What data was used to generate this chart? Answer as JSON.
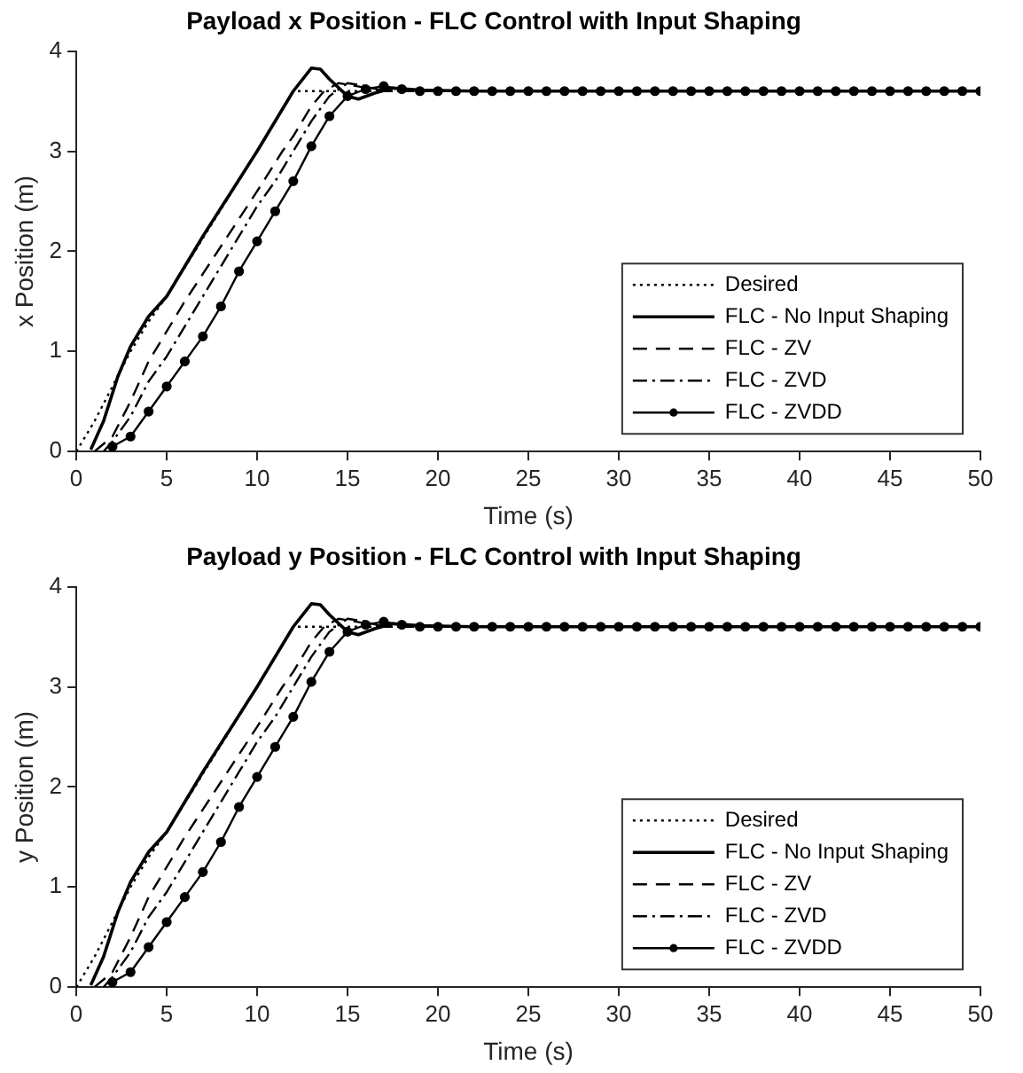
{
  "chart_data": [
    {
      "type": "line",
      "title": "Payload x Position - FLC Control with Input Shaping",
      "xlabel": "Time (s)",
      "ylabel": "x Position (m)",
      "xlim": [
        0,
        50
      ],
      "xticks": [
        0,
        5,
        10,
        15,
        20,
        25,
        30,
        35,
        40,
        45,
        50
      ],
      "ylim": [
        0,
        4
      ],
      "yticks": [
        0,
        1,
        2,
        3,
        4
      ],
      "grid": false,
      "legend": "bottom right",
      "series": [
        {
          "name": "Desired",
          "color": "#000000",
          "line_style": "dotted",
          "marker": "none",
          "x": [
            0,
            1,
            2,
            3,
            4,
            5,
            10,
            12,
            50
          ],
          "values": [
            0,
            0.3,
            0.65,
            1.0,
            1.3,
            1.55,
            3.0,
            3.6,
            3.6
          ]
        },
        {
          "name": "FLC - No Input Shaping",
          "color": "#000000",
          "line_style": "solid",
          "marker": "none",
          "x": [
            0.8,
            1.5,
            2.3,
            3,
            4,
            5,
            7,
            10,
            12,
            13,
            13.5,
            14,
            15,
            15.6,
            16.5,
            17.5,
            19,
            22,
            50
          ],
          "values": [
            0.02,
            0.3,
            0.75,
            1.05,
            1.35,
            1.55,
            2.15,
            3.0,
            3.6,
            3.83,
            3.82,
            3.72,
            3.55,
            3.52,
            3.58,
            3.63,
            3.61,
            3.6,
            3.6
          ]
        },
        {
          "name": "FLC - ZV",
          "color": "#000000",
          "line_style": "dashed",
          "marker": "none",
          "x": [
            1,
            2,
            3,
            4,
            5,
            6,
            8,
            10,
            11.4,
            12,
            13,
            13.7,
            14.5,
            15.5,
            17,
            50
          ],
          "values": [
            0,
            0.15,
            0.5,
            0.9,
            1.2,
            1.5,
            2.05,
            2.6,
            3.0,
            3.15,
            3.45,
            3.6,
            3.68,
            3.65,
            3.6,
            3.6
          ]
        },
        {
          "name": "FLC - ZVD",
          "color": "#000000",
          "line_style": "dashdot",
          "marker": "none",
          "x": [
            1.5,
            2,
            3,
            4,
            5,
            6,
            7,
            8,
            9,
            10,
            11,
            12,
            13,
            14,
            15,
            16,
            17,
            50
          ],
          "values": [
            0,
            0.1,
            0.35,
            0.7,
            0.95,
            1.25,
            1.55,
            1.85,
            2.15,
            2.45,
            2.7,
            3.0,
            3.3,
            3.55,
            3.68,
            3.65,
            3.6,
            3.6
          ]
        },
        {
          "name": "FLC - ZVDD",
          "color": "#000000",
          "line_style": "solid",
          "marker": "circle",
          "x": [
            2,
            3,
            4,
            5,
            6,
            7,
            8,
            9,
            10,
            11,
            12,
            13,
            14,
            15,
            16,
            17,
            18,
            19,
            20,
            21,
            22,
            23,
            24,
            25,
            26,
            27,
            28,
            29,
            30,
            31,
            32,
            33,
            34,
            35,
            36,
            37,
            38,
            39,
            40,
            41,
            42,
            43,
            44,
            45,
            46,
            47,
            48,
            49,
            50
          ],
          "values": [
            0.05,
            0.15,
            0.4,
            0.65,
            0.9,
            1.15,
            1.45,
            1.8,
            2.1,
            2.4,
            2.7,
            3.05,
            3.35,
            3.55,
            3.62,
            3.65,
            3.62,
            3.6,
            3.6,
            3.6,
            3.6,
            3.6,
            3.6,
            3.6,
            3.6,
            3.6,
            3.6,
            3.6,
            3.6,
            3.6,
            3.6,
            3.6,
            3.6,
            3.6,
            3.6,
            3.6,
            3.6,
            3.6,
            3.6,
            3.6,
            3.6,
            3.6,
            3.6,
            3.6,
            3.6,
            3.6,
            3.6,
            3.6,
            3.6
          ]
        }
      ]
    },
    {
      "type": "line",
      "title": "Payload y Position - FLC Control with Input Shaping",
      "xlabel": "Time (s)",
      "ylabel": "y Position (m)",
      "xlim": [
        0,
        50
      ],
      "xticks": [
        0,
        5,
        10,
        15,
        20,
        25,
        30,
        35,
        40,
        45,
        50
      ],
      "ylim": [
        0,
        4
      ],
      "yticks": [
        0,
        1,
        2,
        3,
        4
      ],
      "grid": false,
      "legend": "bottom right",
      "series": [
        {
          "name": "Desired",
          "color": "#000000",
          "line_style": "dotted",
          "marker": "none",
          "x": [
            0,
            1,
            2,
            3,
            4,
            5,
            10,
            12,
            50
          ],
          "values": [
            0,
            0.3,
            0.65,
            1.0,
            1.3,
            1.55,
            3.0,
            3.6,
            3.6
          ]
        },
        {
          "name": "FLC - No Input Shaping",
          "color": "#000000",
          "line_style": "solid",
          "marker": "none",
          "x": [
            0.8,
            1.5,
            2.3,
            3,
            4,
            5,
            7,
            10,
            12,
            13,
            13.5,
            14,
            15,
            15.6,
            16.5,
            17.5,
            19,
            22,
            50
          ],
          "values": [
            0.02,
            0.3,
            0.75,
            1.05,
            1.35,
            1.55,
            2.15,
            3.0,
            3.6,
            3.83,
            3.82,
            3.72,
            3.55,
            3.52,
            3.58,
            3.63,
            3.61,
            3.6,
            3.6
          ]
        },
        {
          "name": "FLC - ZV",
          "color": "#000000",
          "line_style": "dashed",
          "marker": "none",
          "x": [
            1,
            2,
            3,
            4,
            5,
            6,
            8,
            10,
            11.4,
            12,
            13,
            13.7,
            14.5,
            15.5,
            17,
            50
          ],
          "values": [
            0,
            0.15,
            0.5,
            0.9,
            1.2,
            1.5,
            2.05,
            2.6,
            3.0,
            3.15,
            3.45,
            3.6,
            3.68,
            3.65,
            3.6,
            3.6
          ]
        },
        {
          "name": "FLC - ZVD",
          "color": "#000000",
          "line_style": "dashdot",
          "marker": "none",
          "x": [
            1.5,
            2,
            3,
            4,
            5,
            6,
            7,
            8,
            9,
            10,
            11,
            12,
            13,
            14,
            15,
            16,
            17,
            50
          ],
          "values": [
            0,
            0.1,
            0.35,
            0.7,
            0.95,
            1.25,
            1.55,
            1.85,
            2.15,
            2.45,
            2.7,
            3.0,
            3.3,
            3.55,
            3.68,
            3.65,
            3.6,
            3.6
          ]
        },
        {
          "name": "FLC - ZVDD",
          "color": "#000000",
          "line_style": "solid",
          "marker": "circle",
          "x": [
            2,
            3,
            4,
            5,
            6,
            7,
            8,
            9,
            10,
            11,
            12,
            13,
            14,
            15,
            16,
            17,
            18,
            19,
            20,
            21,
            22,
            23,
            24,
            25,
            26,
            27,
            28,
            29,
            30,
            31,
            32,
            33,
            34,
            35,
            36,
            37,
            38,
            39,
            40,
            41,
            42,
            43,
            44,
            45,
            46,
            47,
            48,
            49,
            50
          ],
          "values": [
            0.05,
            0.15,
            0.4,
            0.65,
            0.9,
            1.15,
            1.45,
            1.8,
            2.1,
            2.4,
            2.7,
            3.05,
            3.35,
            3.55,
            3.62,
            3.65,
            3.62,
            3.6,
            3.6,
            3.6,
            3.6,
            3.6,
            3.6,
            3.6,
            3.6,
            3.6,
            3.6,
            3.6,
            3.6,
            3.6,
            3.6,
            3.6,
            3.6,
            3.6,
            3.6,
            3.6,
            3.6,
            3.6,
            3.6,
            3.6,
            3.6,
            3.6,
            3.6,
            3.6,
            3.6,
            3.6,
            3.6,
            3.6,
            3.6
          ]
        }
      ]
    }
  ]
}
